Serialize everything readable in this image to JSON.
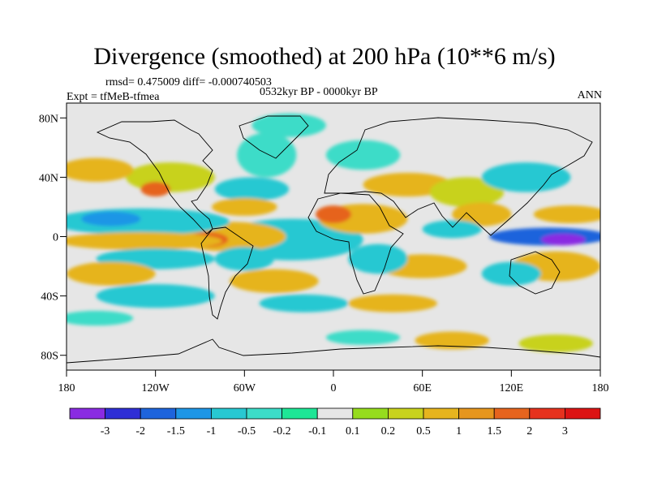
{
  "title": "Divergence (smoothed) at 200 hPa (10**6 m/s)",
  "stats": "rmsd= 0.475009 diff= -0.000740503",
  "experiment": "Expt = tfMeB-tfmea",
  "period": "0532kyr BP - 0000kyr BP",
  "season": "ANN",
  "map": {
    "lon_range": [
      -180,
      180
    ],
    "lat_range": [
      -90,
      90
    ],
    "xticks": [
      {
        "value": -180,
        "label": "180"
      },
      {
        "value": -120,
        "label": "120W"
      },
      {
        "value": -60,
        "label": "60W"
      },
      {
        "value": 0,
        "label": "0"
      },
      {
        "value": 60,
        "label": "60E"
      },
      {
        "value": 120,
        "label": "120E"
      },
      {
        "value": 180,
        "label": "180"
      }
    ],
    "yticks": [
      {
        "value": 80,
        "label": "80N"
      },
      {
        "value": 40,
        "label": "40N"
      },
      {
        "value": 0,
        "label": "0"
      },
      {
        "value": -40,
        "label": "40S"
      },
      {
        "value": -80,
        "label": "80S"
      }
    ],
    "background_color": "#e6e6e6"
  },
  "colorbar": {
    "colors": [
      "#8a2be2",
      "#2f2fd6",
      "#1e64dc",
      "#1e96e6",
      "#28c8d2",
      "#3cdcc8",
      "#1ee696",
      "#e6e6e6",
      "#96dc1e",
      "#c8d21e",
      "#e6b41e",
      "#e6961e",
      "#e6641e",
      "#e6321e",
      "#dc1414"
    ],
    "labels": [
      "-3",
      "-2",
      "-1.5",
      "-1",
      "-0.5",
      "-0.2",
      "-0.1",
      "0.1",
      "0.2",
      "0.5",
      "1",
      "1.5",
      "2",
      "3"
    ]
  },
  "field_patches": [
    {
      "lon": -15,
      "lat": 0,
      "rx": 8,
      "ry": 5,
      "c": 1
    },
    {
      "lon": -20,
      "lat": 0,
      "rx": 22,
      "ry": 9,
      "c": 3
    },
    {
      "lon": -28,
      "lat": -2,
      "rx": 48,
      "ry": 14,
      "c": 4
    },
    {
      "lon": 20,
      "lat": 12,
      "rx": 30,
      "ry": 10,
      "c": 10
    },
    {
      "lon": 0,
      "lat": 15,
      "rx": 12,
      "ry": 6,
      "c": 12
    },
    {
      "lon": -70,
      "lat": 0,
      "rx": 38,
      "ry": 10,
      "c": 10
    },
    {
      "lon": -85,
      "lat": -2,
      "rx": 14,
      "ry": 5,
      "c": 12
    },
    {
      "lon": -130,
      "lat": 10,
      "rx": 60,
      "ry": 9,
      "c": 4
    },
    {
      "lon": -150,
      "lat": 12,
      "rx": 20,
      "ry": 5,
      "c": 3
    },
    {
      "lon": -130,
      "lat": -3,
      "rx": 55,
      "ry": 6,
      "c": 10
    },
    {
      "lon": -120,
      "lat": -15,
      "rx": 40,
      "ry": 7,
      "c": 4
    },
    {
      "lon": -150,
      "lat": -25,
      "rx": 30,
      "ry": 8,
      "c": 10
    },
    {
      "lon": -110,
      "lat": 40,
      "rx": 30,
      "ry": 10,
      "c": 9
    },
    {
      "lon": -160,
      "lat": 45,
      "rx": 25,
      "ry": 8,
      "c": 10
    },
    {
      "lon": -120,
      "lat": 32,
      "rx": 10,
      "ry": 5,
      "c": 12
    },
    {
      "lon": -55,
      "lat": 32,
      "rx": 25,
      "ry": 8,
      "c": 4
    },
    {
      "lon": -60,
      "lat": 20,
      "rx": 22,
      "ry": 6,
      "c": 10
    },
    {
      "lon": -45,
      "lat": 55,
      "rx": 20,
      "ry": 15,
      "c": 5
    },
    {
      "lon": -30,
      "lat": 75,
      "rx": 25,
      "ry": 8,
      "c": 5
    },
    {
      "lon": 20,
      "lat": 55,
      "rx": 25,
      "ry": 10,
      "c": 5
    },
    {
      "lon": 50,
      "lat": 35,
      "rx": 30,
      "ry": 8,
      "c": 10
    },
    {
      "lon": 90,
      "lat": 30,
      "rx": 25,
      "ry": 10,
      "c": 9
    },
    {
      "lon": 130,
      "lat": 40,
      "rx": 30,
      "ry": 10,
      "c": 4
    },
    {
      "lon": 100,
      "lat": 15,
      "rx": 20,
      "ry": 8,
      "c": 10
    },
    {
      "lon": 80,
      "lat": 5,
      "rx": 20,
      "ry": 6,
      "c": 4
    },
    {
      "lon": 145,
      "lat": 0,
      "rx": 40,
      "ry": 6,
      "c": 2
    },
    {
      "lon": 155,
      "lat": -2,
      "rx": 15,
      "ry": 4,
      "c": 0
    },
    {
      "lon": 160,
      "lat": 15,
      "rx": 25,
      "ry": 6,
      "c": 10
    },
    {
      "lon": 150,
      "lat": -20,
      "rx": 30,
      "ry": 10,
      "c": 10
    },
    {
      "lon": 120,
      "lat": -25,
      "rx": 20,
      "ry": 8,
      "c": 4
    },
    {
      "lon": 60,
      "lat": -20,
      "rx": 30,
      "ry": 8,
      "c": 10
    },
    {
      "lon": 30,
      "lat": -15,
      "rx": 20,
      "ry": 10,
      "c": 4
    },
    {
      "lon": -40,
      "lat": -30,
      "rx": 30,
      "ry": 8,
      "c": 10
    },
    {
      "lon": -60,
      "lat": -15,
      "rx": 20,
      "ry": 8,
      "c": 4
    },
    {
      "lon": -120,
      "lat": -40,
      "rx": 40,
      "ry": 8,
      "c": 4
    },
    {
      "lon": -20,
      "lat": -45,
      "rx": 30,
      "ry": 6,
      "c": 4
    },
    {
      "lon": 40,
      "lat": -45,
      "rx": 30,
      "ry": 6,
      "c": 10
    },
    {
      "lon": -160,
      "lat": -55,
      "rx": 25,
      "ry": 5,
      "c": 5
    },
    {
      "lon": 20,
      "lat": -68,
      "rx": 25,
      "ry": 5,
      "c": 5
    },
    {
      "lon": 80,
      "lat": -70,
      "rx": 25,
      "ry": 6,
      "c": 10
    },
    {
      "lon": 150,
      "lat": -72,
      "rx": 25,
      "ry": 6,
      "c": 9
    }
  ]
}
